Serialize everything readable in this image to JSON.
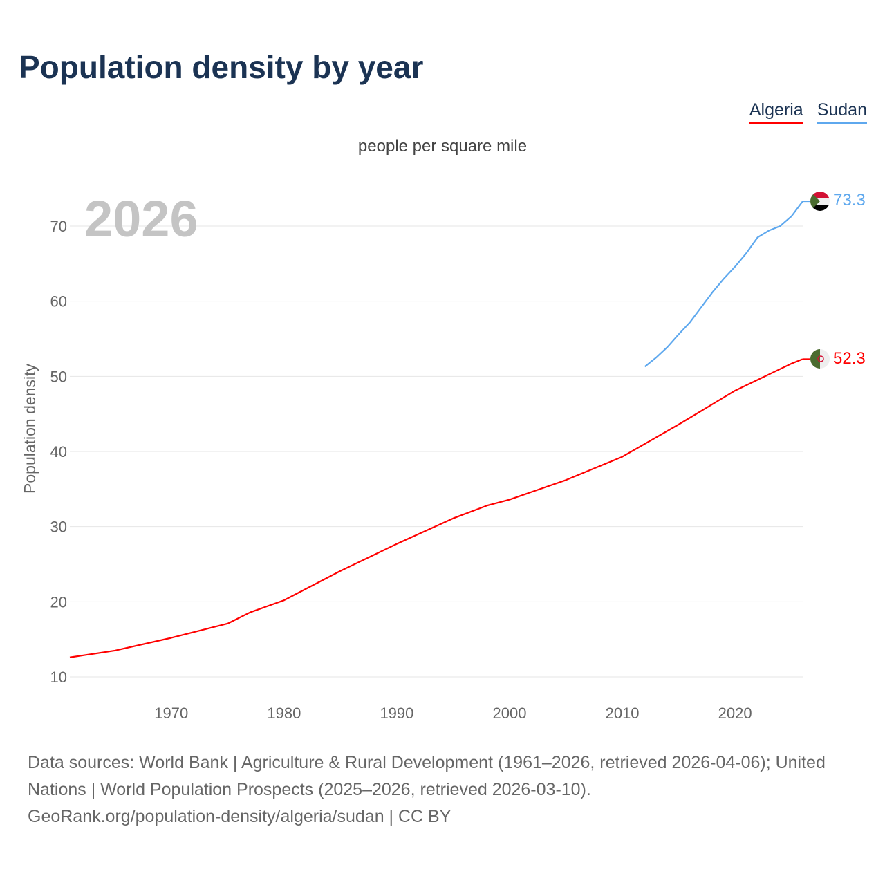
{
  "title": "Population density by year",
  "subtitle": "people per square mile",
  "year_label": "2026",
  "footer": {
    "line1": "Data sources: World Bank | Agriculture & Rural Development (1961–2026, retrieved 2026-04-06); United Nations | World Population Prospects (2025–2026, retrieved 2026-03-10).",
    "line2": "GeoRank.org/population-density/algeria/sudan | CC BY"
  },
  "chart_data": {
    "type": "line",
    "title": "Population density by year",
    "subtitle": "people per square mile",
    "xlabel": "",
    "ylabel": "Population density",
    "xlim": [
      1961,
      2026
    ],
    "ylim": [
      8,
      76
    ],
    "x_ticks": [
      1970,
      1980,
      1990,
      2000,
      2010,
      2020
    ],
    "y_ticks": [
      10,
      20,
      30,
      40,
      50,
      60,
      70
    ],
    "grid": true,
    "legend_position": "top-right",
    "series": [
      {
        "name": "Algeria",
        "color": "#ff0000",
        "end_label": "52.3",
        "x": [
          1961,
          1965,
          1970,
          1975,
          1977,
          1980,
          1985,
          1990,
          1995,
          1998,
          2000,
          2005,
          2010,
          2015,
          2020,
          2025,
          2026
        ],
        "y": [
          12.6,
          13.5,
          15.2,
          17.1,
          18.6,
          20.2,
          24.1,
          27.7,
          31.1,
          32.8,
          33.6,
          36.2,
          39.3,
          43.6,
          48.1,
          51.7,
          52.3
        ]
      },
      {
        "name": "Sudan",
        "color": "#5ea8ee",
        "end_label": "73.3",
        "x": [
          2012,
          2013,
          2014,
          2015,
          2016,
          2017,
          2018,
          2019,
          2020,
          2021,
          2022,
          2023,
          2024,
          2025,
          2026
        ],
        "y": [
          51.3,
          52.5,
          53.9,
          55.6,
          57.2,
          59.2,
          61.2,
          63.0,
          64.6,
          66.4,
          68.5,
          69.4,
          70.0,
          71.3,
          73.3
        ]
      }
    ]
  }
}
